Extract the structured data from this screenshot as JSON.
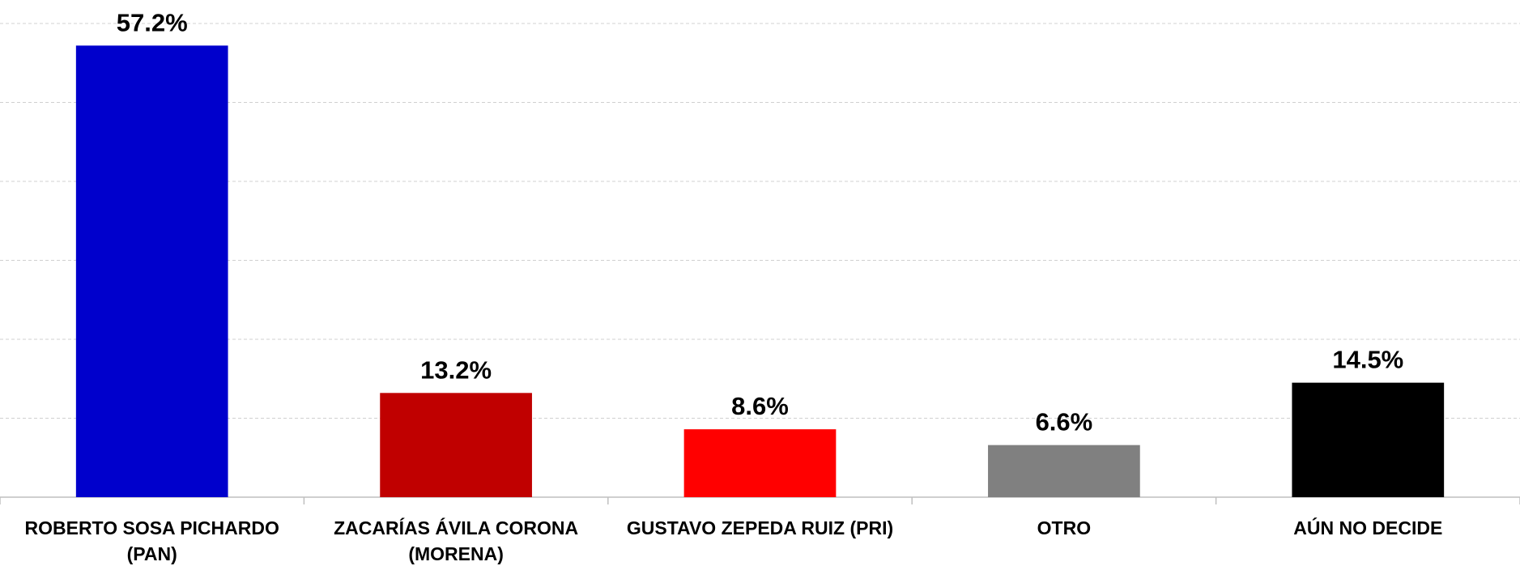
{
  "chart_data": {
    "type": "bar",
    "categories": [
      "ROBERTO SOSA PICHARDO (PAN)",
      "ZACARÍAS ÁVILA CORONA (MORENA)",
      "GUSTAVO ZEPEDA RUIZ (PRI)",
      "OTRO",
      "AÚN NO DECIDE"
    ],
    "values": [
      57.2,
      13.2,
      8.6,
      6.6,
      14.5
    ],
    "value_labels": [
      "57.2%",
      "13.2%",
      "8.6%",
      "6.6%",
      "14.5%"
    ],
    "colors": [
      "#0000cc",
      "#c00000",
      "#ff0000",
      "#808080",
      "#000000"
    ],
    "ylim": [
      0,
      60
    ],
    "yticks": [
      0,
      10,
      20,
      30,
      40,
      50,
      60
    ],
    "grid": true
  }
}
